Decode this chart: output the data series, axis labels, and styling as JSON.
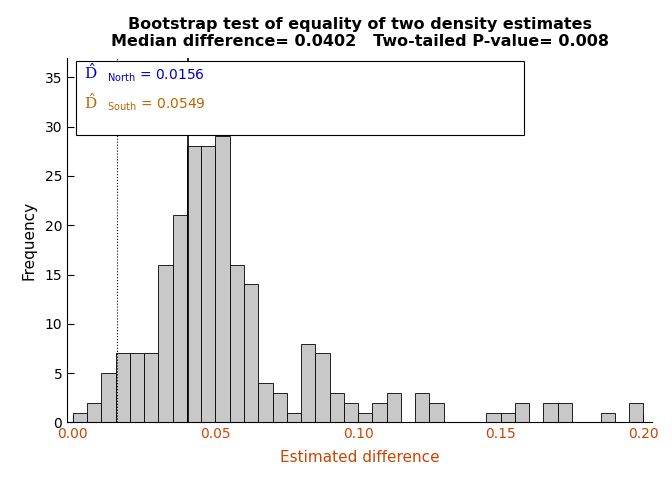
{
  "title_line1": "Bootstrap test of equality of two density estimates",
  "title_line2": "Median difference= 0.0402   Two-tailed P-value= 0.008",
  "xlabel": "Estimated difference",
  "ylabel": "Frequency",
  "xlim": [
    -0.002,
    0.203
  ],
  "ylim": [
    0,
    37
  ],
  "xticks": [
    0.0,
    0.05,
    0.1,
    0.15,
    0.2
  ],
  "yticks": [
    0,
    5,
    10,
    15,
    20,
    25,
    30,
    35
  ],
  "bar_edges": [
    0.0,
    0.005,
    0.01,
    0.015,
    0.02,
    0.025,
    0.03,
    0.035,
    0.04,
    0.045,
    0.05,
    0.055,
    0.06,
    0.065,
    0.07,
    0.075,
    0.08,
    0.085,
    0.09,
    0.095,
    0.1,
    0.105,
    0.11,
    0.115,
    0.12,
    0.125,
    0.13,
    0.135,
    0.14,
    0.145,
    0.15,
    0.155,
    0.16,
    0.165,
    0.17,
    0.175,
    0.18,
    0.185,
    0.19,
    0.195
  ],
  "bar_heights": [
    1,
    2,
    5,
    7,
    7,
    7,
    16,
    21,
    28,
    28,
    29,
    16,
    14,
    4,
    3,
    1,
    8,
    7,
    3,
    2,
    1,
    2,
    3,
    0,
    3,
    2,
    0,
    0,
    0,
    1,
    1,
    2,
    0,
    2,
    2,
    0,
    0,
    1,
    0,
    2
  ],
  "bar_color": "#c8c8c8",
  "bar_edgecolor": "#000000",
  "median_line_x": 0.0402,
  "dashed_line_x": 0.0156,
  "d_north_val": "0.0156",
  "d_south_val": "0.0549",
  "annotation_color_north": "#0000bb",
  "annotation_color_south": "#bb6600",
  "tick_color": "#cc4400",
  "background_color": "#ffffff",
  "title_fontsize": 11.5,
  "axis_label_fontsize": 11,
  "tick_fontsize": 10
}
